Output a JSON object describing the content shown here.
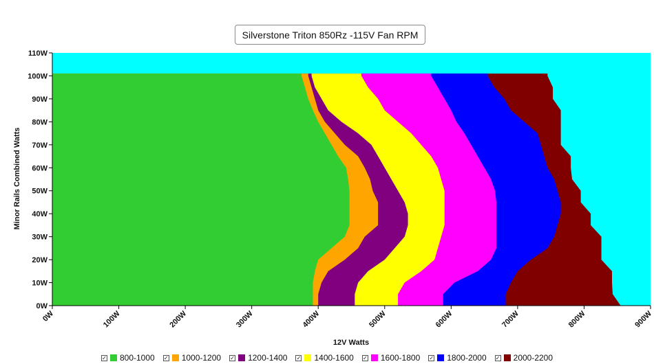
{
  "chart_data": {
    "type": "area",
    "title": "Silverstone Triton 850Rz -115V Fan RPM",
    "xlabel": "12V Watts",
    "ylabel": "Minor Rails Combined Watts",
    "xlim": [
      0,
      900
    ],
    "ylim": [
      0,
      110
    ],
    "x_ticks": [
      "0W",
      "100W",
      "200W",
      "300W",
      "400W",
      "500W",
      "600W",
      "700W",
      "800W",
      "900W"
    ],
    "y_ticks": [
      "0W",
      "10W",
      "20W",
      "30W",
      "40W",
      "50W",
      "60W",
      "70W",
      "80W",
      "90W",
      "100W",
      "110W"
    ],
    "background_color": "#00FFFF",
    "legend_position": "bottom",
    "y_levels": [
      0,
      5,
      10,
      15,
      20,
      25,
      30,
      35,
      40,
      45,
      50,
      55,
      60,
      65,
      70,
      75,
      80,
      85,
      90,
      95,
      100,
      101
    ],
    "series": [
      {
        "name": "800-1000",
        "color": "#32CD32",
        "right_edge": [
          392,
          392,
          392,
          395,
          400,
          420,
          440,
          447,
          447,
          447,
          447,
          445,
          442,
          430,
          420,
          410,
          400,
          392,
          385,
          380,
          375,
          375
        ]
      },
      {
        "name": "1000-1200",
        "color": "#FFA500",
        "right_edge": [
          400,
          400,
          405,
          415,
          440,
          460,
          470,
          490,
          490,
          490,
          482,
          478,
          470,
          460,
          440,
          425,
          410,
          400,
          395,
          390,
          385,
          385
        ]
      },
      {
        "name": "1200-1400",
        "color": "#800080",
        "right_edge": [
          455,
          455,
          460,
          475,
          500,
          515,
          530,
          535,
          535,
          530,
          520,
          510,
          500,
          490,
          480,
          460,
          435,
          415,
          405,
          395,
          390,
          390
        ]
      },
      {
        "name": "1400-1600",
        "color": "#FFFF00",
        "right_edge": [
          520,
          520,
          530,
          555,
          575,
          580,
          585,
          590,
          590,
          590,
          590,
          585,
          580,
          570,
          555,
          540,
          520,
          500,
          490,
          475,
          465,
          465
        ]
      },
      {
        "name": "1600-1800",
        "color": "#FF00FF",
        "right_edge": [
          588,
          588,
          605,
          640,
          660,
          668,
          668,
          668,
          668,
          668,
          666,
          660,
          650,
          640,
          630,
          620,
          608,
          600,
          590,
          580,
          570,
          570
        ]
      },
      {
        "name": "1800-2000",
        "color": "#0000FF",
        "right_edge": [
          682,
          682,
          690,
          700,
          720,
          745,
          755,
          760,
          765,
          765,
          760,
          755,
          745,
          740,
          735,
          730,
          710,
          690,
          680,
          665,
          655,
          655
        ]
      },
      {
        "name": "2000-2200",
        "color": "#800000",
        "right_edge": [
          855,
          843,
          842,
          842,
          826,
          826,
          826,
          810,
          810,
          795,
          795,
          782,
          780,
          780,
          765,
          765,
          765,
          765,
          753,
          753,
          745,
          745
        ]
      }
    ]
  }
}
